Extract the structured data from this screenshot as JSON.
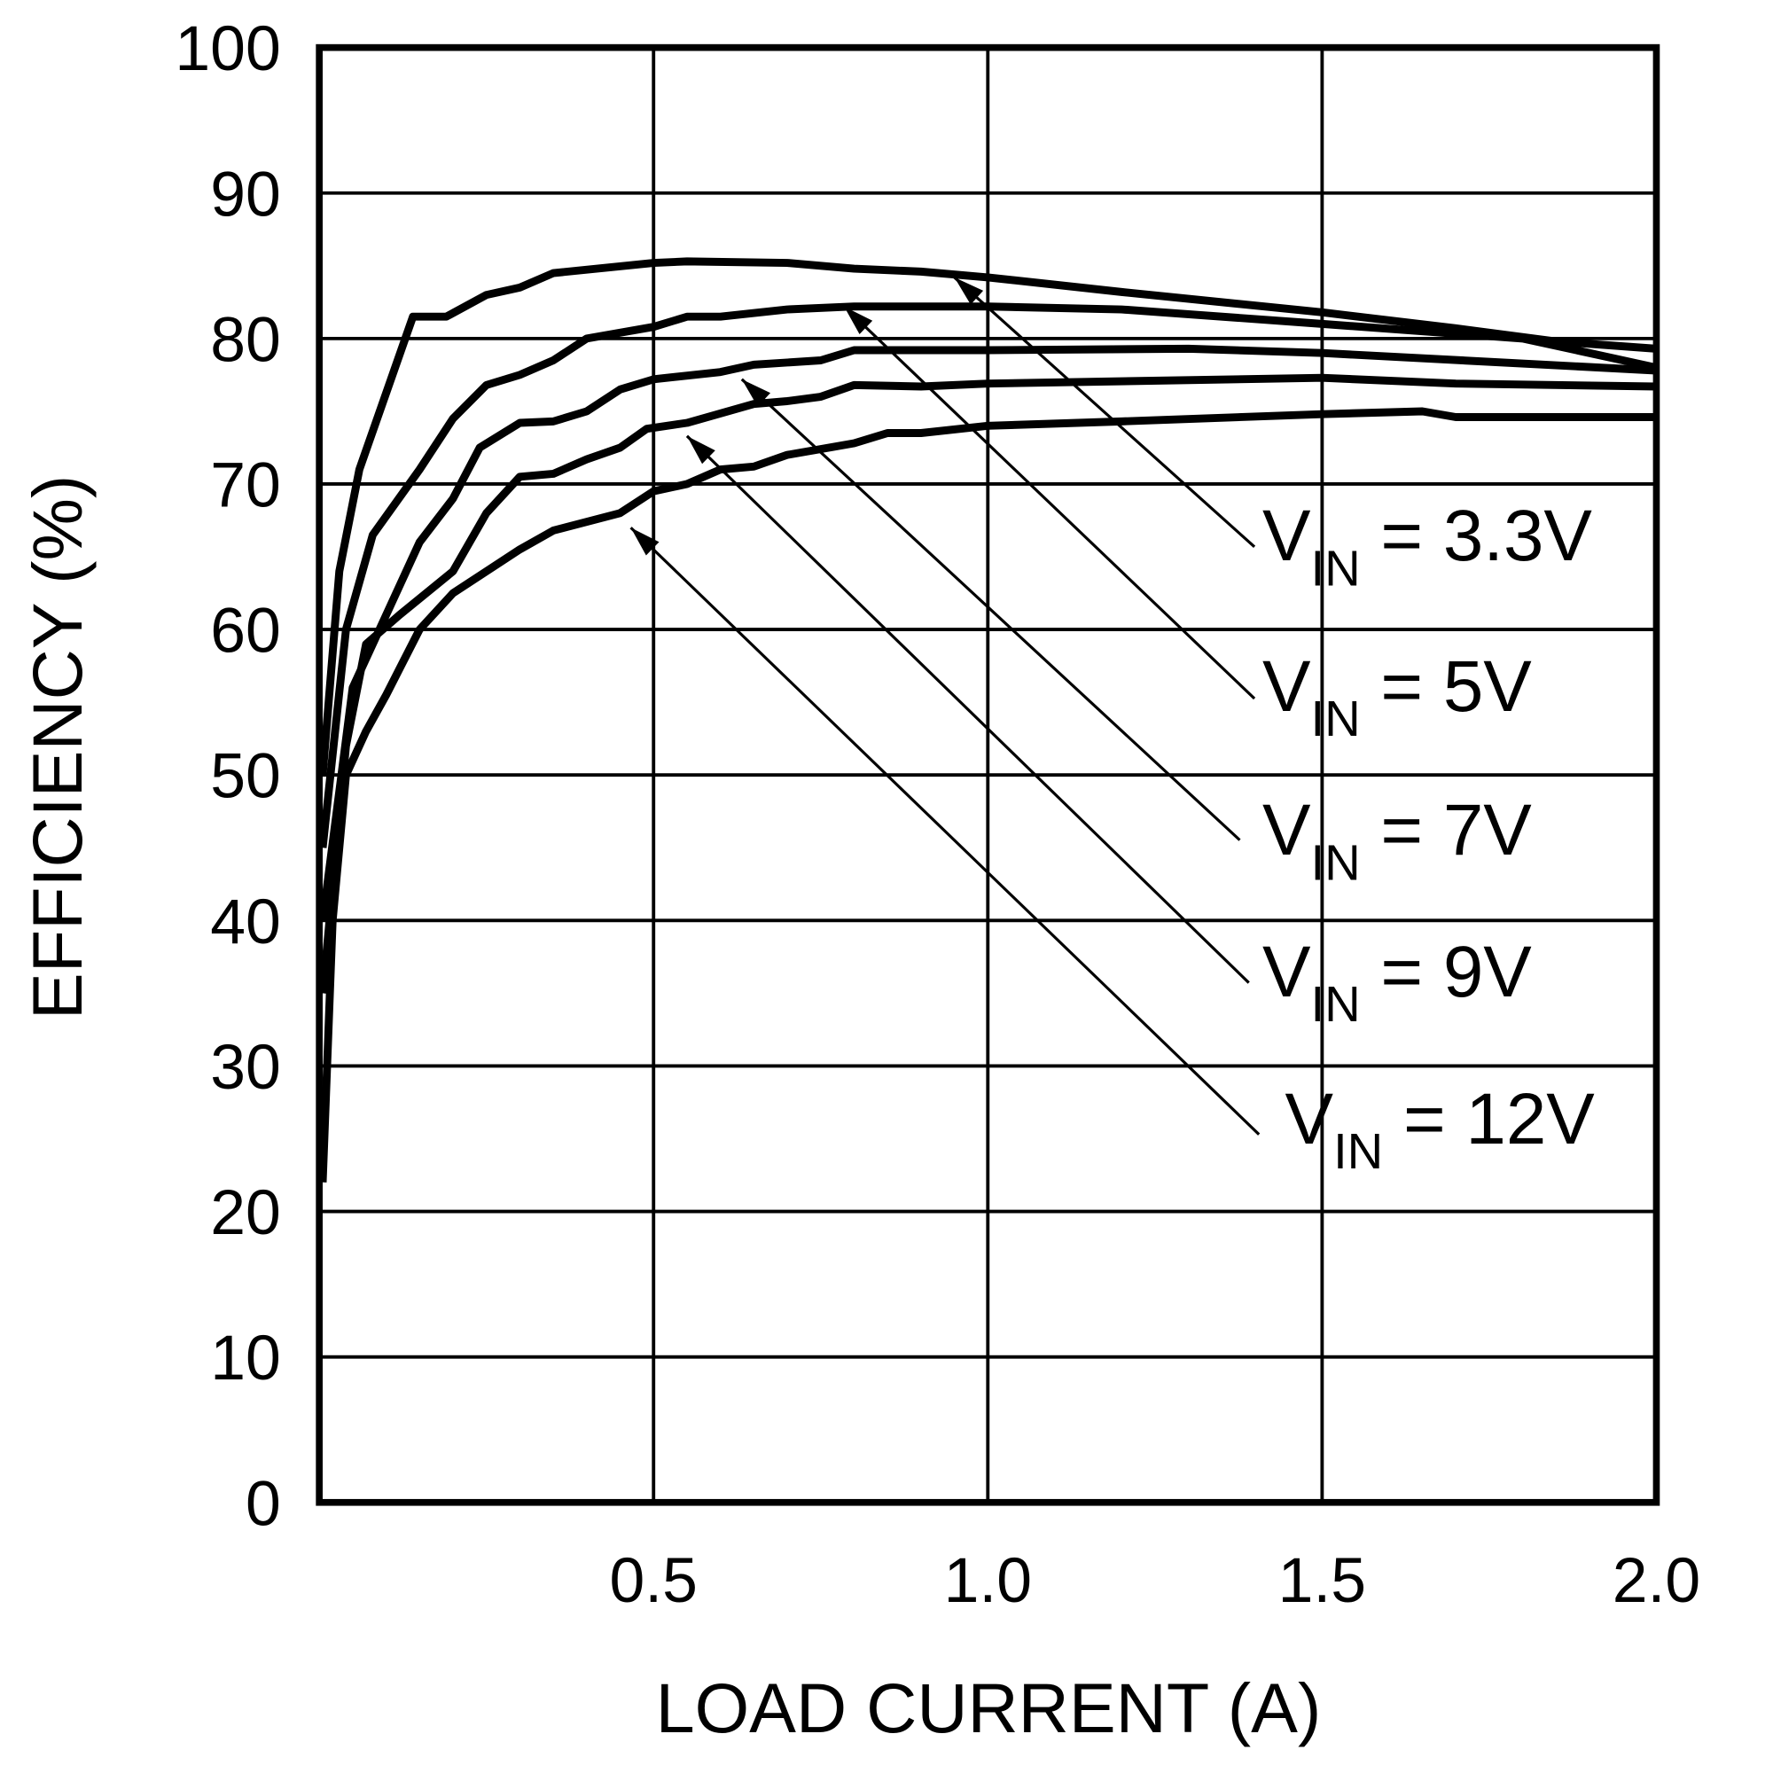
{
  "chart_data": {
    "type": "line",
    "xlabel": "LOAD CURRENT (A)",
    "ylabel": "EFFICIENCY (%)",
    "xlim": [
      0,
      2.0
    ],
    "ylim": [
      0,
      100
    ],
    "xticks": [
      "0.5",
      "1.0",
      "1.5",
      "2.0"
    ],
    "xtick_values": [
      0.5,
      1.0,
      1.5,
      2.0
    ],
    "yticks": [
      "0",
      "10",
      "20",
      "30",
      "40",
      "50",
      "60",
      "70",
      "80",
      "90",
      "100"
    ],
    "ytick_values": [
      0,
      10,
      20,
      30,
      40,
      50,
      60,
      70,
      80,
      90,
      100
    ],
    "grid": true,
    "line_color": "#000000",
    "series": [
      {
        "name": "VIN = 3.3V",
        "label_main": "V",
        "label_sub": "IN",
        "label_rest": " = 3.3V",
        "arrow_at": [
          0.95,
          84.2
        ],
        "x": [
          0.005,
          0.03,
          0.06,
          0.14,
          0.19,
          0.25,
          0.3,
          0.35,
          0.5,
          0.55,
          0.7,
          0.8,
          0.9,
          1.0,
          1.2,
          1.5,
          1.7,
          1.85,
          2.0
        ],
        "y": [
          50,
          64,
          71,
          81.5,
          81.5,
          83,
          83.5,
          84.5,
          85.2,
          85.3,
          85.2,
          84.8,
          84.6,
          84.2,
          83.2,
          81.8,
          80.7,
          79.8,
          79.3
        ]
      },
      {
        "name": "VIN = 5V",
        "label_main": "V",
        "label_sub": "IN",
        "label_rest": " = 5V",
        "arrow_at": [
          0.785,
          82.2
        ],
        "x": [
          0.005,
          0.04,
          0.08,
          0.15,
          0.2,
          0.25,
          0.3,
          0.35,
          0.4,
          0.5,
          0.55,
          0.6,
          0.7,
          0.8,
          1.0,
          1.2,
          1.5,
          1.8,
          2.0
        ],
        "y": [
          45,
          60,
          66.5,
          71,
          74.5,
          76.8,
          77.5,
          78.5,
          80,
          80.8,
          81.5,
          81.5,
          82,
          82.2,
          82.2,
          82,
          81,
          80,
          78
        ]
      },
      {
        "name": "VIN = 7V",
        "label_main": "V",
        "label_sub": "IN",
        "label_rest": " = 7V",
        "arrow_at": [
          0.632,
          77.2
        ],
        "x": [
          0.005,
          0.05,
          0.1,
          0.15,
          0.2,
          0.24,
          0.3,
          0.35,
          0.4,
          0.45,
          0.5,
          0.6,
          0.65,
          0.75,
          0.8,
          1.0,
          1.3,
          1.5,
          2.0
        ],
        "y": [
          40,
          56,
          61,
          66,
          69,
          72.5,
          74.2,
          74.3,
          75,
          76.5,
          77.2,
          77.7,
          78.2,
          78.5,
          79.2,
          79.2,
          79.3,
          79,
          77.8
        ]
      },
      {
        "name": "VIN = 9V",
        "label_main": "V",
        "label_sub": "IN",
        "label_rest": " = 9V",
        "arrow_at": [
          0.55,
          73.3
        ],
        "x": [
          0.005,
          0.04,
          0.07,
          0.12,
          0.2,
          0.25,
          0.3,
          0.35,
          0.4,
          0.45,
          0.49,
          0.55,
          0.65,
          0.7,
          0.75,
          0.8,
          0.9,
          1.0,
          1.5,
          1.7,
          2.0
        ],
        "y": [
          35,
          52,
          59,
          61,
          64,
          68,
          70.5,
          70.7,
          71.7,
          72.5,
          73.8,
          74.2,
          75.5,
          75.7,
          76,
          76.8,
          76.7,
          76.9,
          77.3,
          76.9,
          76.7
        ]
      },
      {
        "name": "VIN = 12V",
        "label_main": "V",
        "label_sub": "IN",
        "label_rest": " = 12V",
        "arrow_at": [
          0.466,
          67
        ],
        "x": [
          0.005,
          0.02,
          0.04,
          0.07,
          0.1,
          0.15,
          0.2,
          0.3,
          0.35,
          0.45,
          0.5,
          0.55,
          0.6,
          0.65,
          0.7,
          0.8,
          0.85,
          0.9,
          1.0,
          1.2,
          1.5,
          1.65,
          1.7,
          2.0
        ],
        "y": [
          22,
          40,
          50,
          53,
          55.5,
          60,
          62.5,
          65.5,
          66.8,
          68,
          69.5,
          70,
          71,
          71.2,
          72,
          72.8,
          73.5,
          73.5,
          74,
          74.3,
          74.8,
          75,
          74.6,
          74.6
        ]
      }
    ]
  }
}
